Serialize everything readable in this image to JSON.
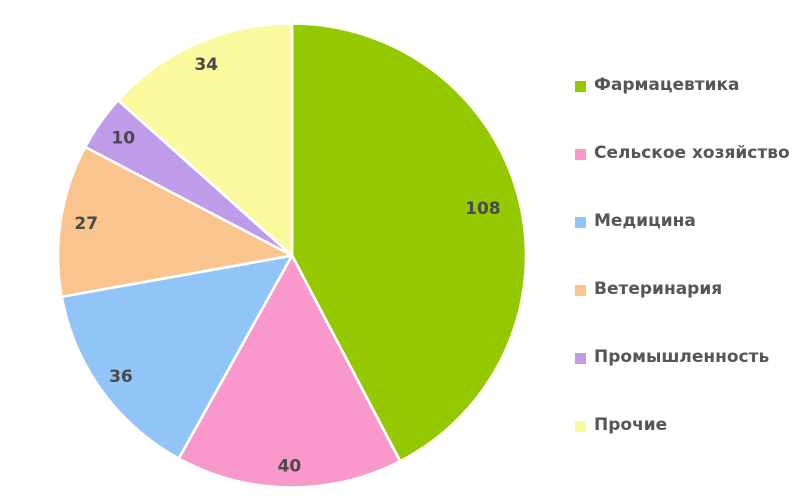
{
  "chart_data": {
    "type": "pie",
    "title": "",
    "slices": [
      {
        "label": "Фармацевтика",
        "value": 108,
        "color": "#94C801"
      },
      {
        "label": "Сельское хозяйство",
        "value": 40,
        "color": "#F898CB"
      },
      {
        "label": "Медицина",
        "value": 36,
        "color": "#92C5F7"
      },
      {
        "label": "Ветеринария",
        "value": 27,
        "color": "#FAC48F"
      },
      {
        "label": "Промышленность",
        "value": 10,
        "color": "#BF9CEA"
      },
      {
        "label": "Прочие",
        "value": 34,
        "color": "#FBF99D"
      }
    ],
    "total": 255,
    "start_angle_deg": 0,
    "direction": "clockwise",
    "legend_position": "right",
    "data_labels_shown": true,
    "label_radius": [
      0.84,
      0.91,
      0.9,
      0.89,
      0.88,
      0.9
    ],
    "separator_color": "#FFFFFF",
    "background": "#FFFFFF",
    "label_color": "#4A4A4A",
    "legend_text_color": "#565656"
  }
}
